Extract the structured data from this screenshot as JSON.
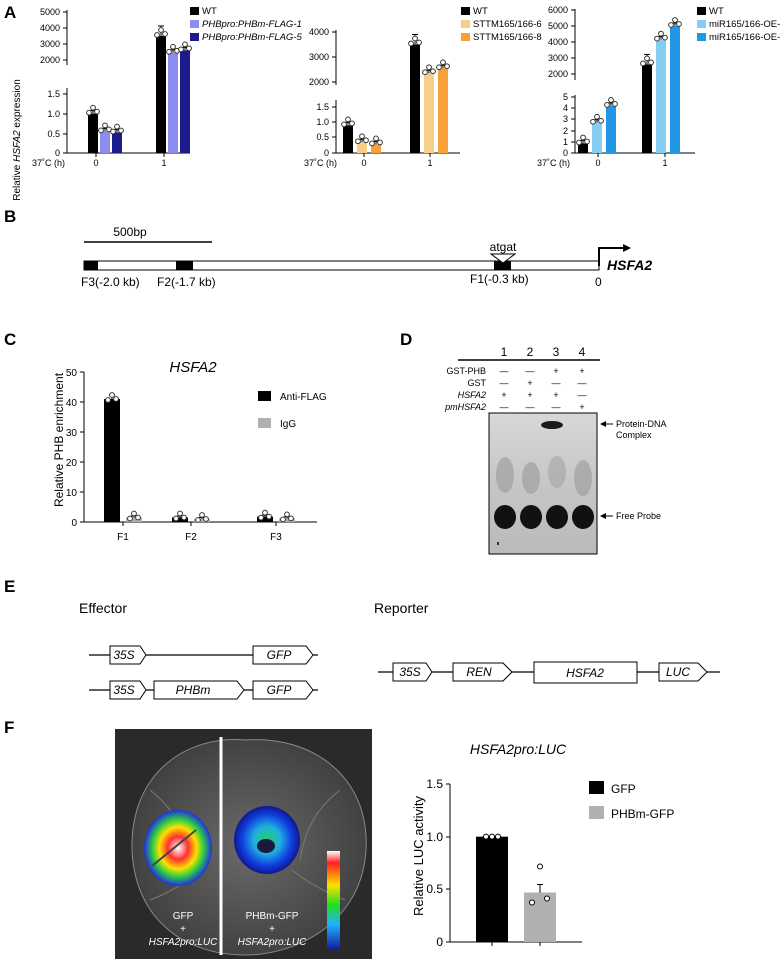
{
  "panels": {
    "A": "A",
    "B": "B",
    "C": "C",
    "D": "D",
    "E": "E",
    "F": "F"
  },
  "panel_a": {
    "ylabel_pre": "Relative ",
    "ylabel_gene": "HSFA2",
    "ylabel_post": " expression",
    "xaxis_label": "37˚C (h)",
    "time_points": [
      "0",
      "1"
    ],
    "colors": {
      "c1": "#000000",
      "c2": "#8B8BF0",
      "c3": "#1B1B8C",
      "c4": "#F7CF8A",
      "c5": "#F7A13B",
      "c6": "#86CEF1",
      "c7": "#2197E6"
    }
  },
  "panel_b": {
    "scale_label": "500bp",
    "site_label": "atgat",
    "gene_label": "HSFA2",
    "f3": "F3(-2.0 kb)",
    "f2": "F2(-1.7 kb)",
    "f1": "F1(-0.3 kb)",
    "zero": "0"
  },
  "panel_c": {
    "legend": [
      "Anti-FLAG",
      "IgG"
    ]
  },
  "panel_d": {
    "lanes": [
      "1",
      "2",
      "3",
      "4"
    ],
    "row_labels": [
      "GST-PHB",
      "GST",
      "HSFA2",
      "pmHSFA2"
    ],
    "rows": [
      [
        "—",
        "—",
        "+",
        "+"
      ],
      [
        "—",
        "+",
        "—",
        "—"
      ],
      [
        "+",
        "+",
        "+",
        "—"
      ],
      [
        "—",
        "—",
        "—",
        "+"
      ]
    ],
    "complex_label_1": "Protein-DNA",
    "complex_label_2": "Complex",
    "free_label": "Free Probe"
  },
  "panel_e": {
    "effector_label": "Effector",
    "reporter_label": "Reporter",
    "p35s": "35S",
    "gfp": "GFP",
    "phbm": "PHBm",
    "ren": "REN",
    "hsfa2": "HSFA2",
    "luc": "LUC"
  },
  "panel_f": {
    "leaf_left_1": "GFP",
    "leaf_plus": "+",
    "leaf_left_2": "HSFA2pro:LUC",
    "leaf_right_1": "PHBm-GFP",
    "leaf_right_2": "HSFA2pro:LUC"
  },
  "chart_data": [
    {
      "id": "A1",
      "type": "bar",
      "ylabel": "Relative HSFA2 expression",
      "xlabel": "37˚C (h)",
      "categories": [
        "0",
        "1"
      ],
      "axis_break": true,
      "yticks_lower": [
        "0",
        "0.5",
        "1.0",
        "1.5"
      ],
      "yticks_upper": [
        "2000",
        "3000",
        "4000",
        "5000"
      ],
      "series": [
        {
          "name": "WT",
          "values": [
            1.0,
            3500
          ]
        },
        {
          "name": "PHBpro:PHBm-FLAG-1",
          "values": [
            0.55,
            2450
          ]
        },
        {
          "name": "PHBpro:PHBm-FLAG-5",
          "values": [
            0.52,
            2600
          ]
        }
      ]
    },
    {
      "id": "A2",
      "type": "bar",
      "xlabel": "37˚C (h)",
      "categories": [
        "0",
        "1"
      ],
      "axis_break": true,
      "yticks_lower": [
        "0",
        "0.5",
        "1.0",
        "1.5"
      ],
      "yticks_upper": [
        "2000",
        "3000",
        "4000"
      ],
      "series": [
        {
          "name": "WT",
          "values": [
            0.9,
            3500
          ]
        },
        {
          "name": "STTM165/166-6",
          "values": [
            0.35,
            2350
          ]
        },
        {
          "name": "STTM165/166-8",
          "values": [
            0.28,
            2550
          ]
        }
      ]
    },
    {
      "id": "A3",
      "type": "bar",
      "xlabel": "37˚C (h)",
      "categories": [
        "0",
        "1"
      ],
      "axis_break": true,
      "yticks_lower": [
        "0",
        "1",
        "2",
        "3",
        "4",
        "5"
      ],
      "yticks_upper": [
        "2000",
        "3000",
        "4000",
        "5000",
        "6000"
      ],
      "series": [
        {
          "name": "WT",
          "values": [
            0.85,
            2600
          ]
        },
        {
          "name": "miR165/166-OE-2",
          "values": [
            2.7,
            4150
          ]
        },
        {
          "name": "miR165/166-OE-6",
          "values": [
            4.2,
            5000
          ]
        }
      ]
    },
    {
      "id": "C",
      "type": "bar",
      "title": "HSFA2",
      "ylabel": "Relative PHB enrichment",
      "categories": [
        "F1",
        "F2",
        "F3"
      ],
      "ylim": [
        0,
        50
      ],
      "yticks": [
        "0",
        "10",
        "20",
        "30",
        "40",
        "50"
      ],
      "series": [
        {
          "name": "Anti-FLAG",
          "values": [
            41,
            1.5,
            1.8
          ]
        },
        {
          "name": "IgG",
          "values": [
            1.5,
            1.0,
            1.2
          ]
        }
      ]
    },
    {
      "id": "F",
      "type": "bar",
      "title": "HSFA2pro:LUC",
      "ylabel": "Relative LUC activity",
      "ylim": [
        0,
        1.5
      ],
      "yticks": [
        "0",
        "0.5",
        "1.0",
        "1.5"
      ],
      "series": [
        {
          "name": "GFP",
          "values": [
            1.0
          ]
        },
        {
          "name": "PHBm-GFP",
          "values": [
            0.47
          ]
        }
      ]
    }
  ]
}
